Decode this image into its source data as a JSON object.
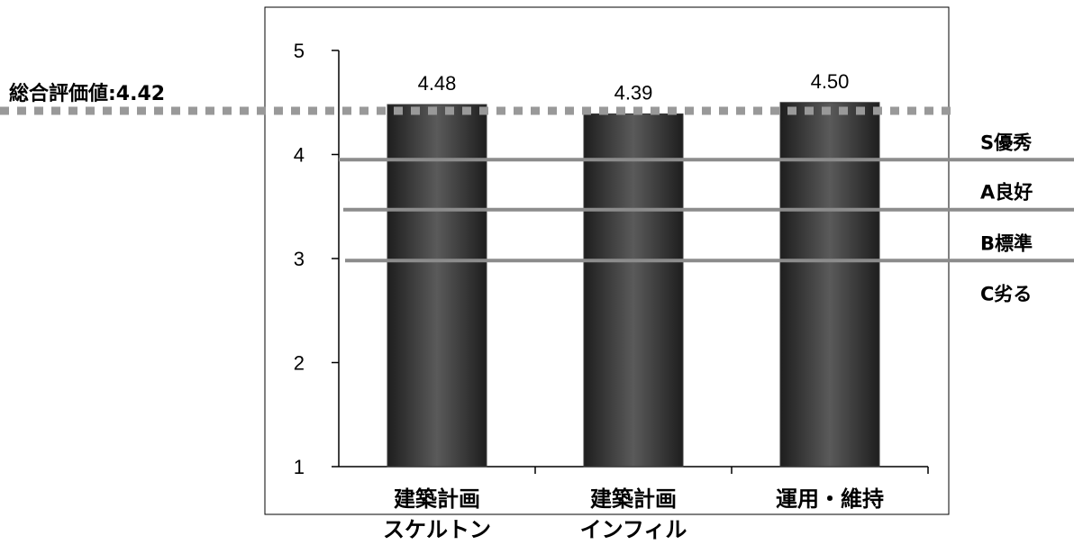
{
  "chart_data": {
    "type": "bar",
    "categories": [
      [
        "建築計画",
        "スケルトン"
      ],
      [
        "建築計画",
        "インフィル"
      ],
      [
        "運用・維持"
      ]
    ],
    "values": [
      4.48,
      4.39,
      4.5
    ],
    "value_labels": [
      "4.48",
      "4.39",
      "4.50"
    ],
    "ylim": [
      1,
      5
    ],
    "yticks": [
      "1",
      "2",
      "3",
      "4",
      "5"
    ],
    "bar_color": "#3a3a3a",
    "grid": false,
    "reference_line": {
      "label": "総合評価値:4.42",
      "value": 4.42,
      "style": "dotted",
      "color": "#999999"
    },
    "thresholds": [
      {
        "label": "S優秀",
        "value": 3.95
      },
      {
        "label": "A良好",
        "value": 3.47
      },
      {
        "label": "B標準",
        "value": 2.98
      }
    ],
    "bands_below": {
      "label": "C劣る"
    },
    "threshold_color": "#8c8c8c"
  }
}
